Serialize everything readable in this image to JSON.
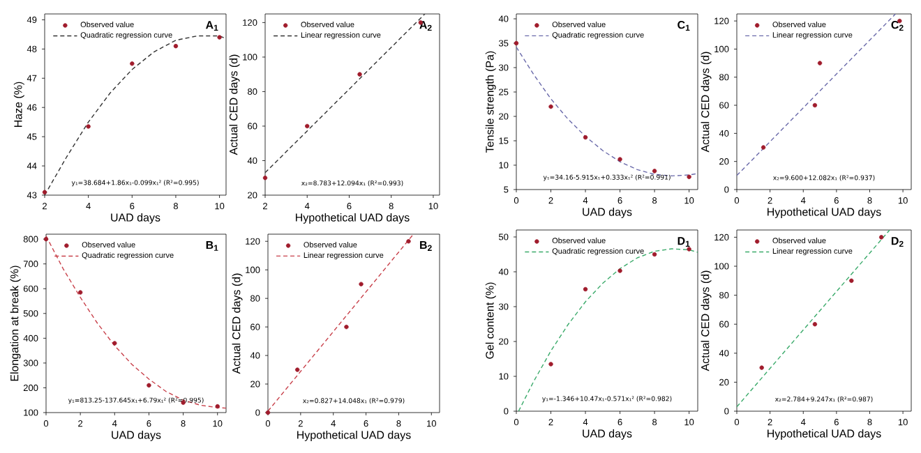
{
  "chart_data": [
    {
      "type": "scatter",
      "xlabel": "UAD days",
      "ylabel": "Haze (%)",
      "annotations": [
        "A$_{1}$",
        "y₁=38.684+1.86x₁-0.099x₁² (R²=0.995)"
      ],
      "xlim": [
        2,
        10.3
      ],
      "ylim": [
        43,
        49.2
      ],
      "xticks": [
        2,
        4,
        6,
        8,
        10
      ],
      "yticks": [
        43,
        44,
        45,
        46,
        47,
        48,
        49
      ],
      "legend": "top left",
      "series": [
        {
          "name": "Observed value",
          "type": "scatter",
          "marker": "circle",
          "color": "#a01c2c",
          "x": [
            2,
            4,
            6,
            8,
            10
          ],
          "values": [
            43.1,
            45.35,
            47.5,
            48.1,
            48.4
          ]
        },
        {
          "name": "Quadratic regression curve",
          "type": "line",
          "line_style": "dashed",
          "color": "#333333",
          "x": [
            2,
            3,
            4,
            5,
            6,
            7,
            8,
            9,
            10,
            10.3
          ],
          "values": [
            43.0,
            44.3,
            45.5,
            46.5,
            47.3,
            47.9,
            48.3,
            48.45,
            48.45,
            48.35
          ]
        }
      ]
    },
    {
      "type": "scatter",
      "xlabel": "Hypothetical UAD days",
      "ylabel": "Actual CED days (d)",
      "annotations": [
        "A$_{2}$",
        "x₂=8.783+12.094x₁ (R²=0.993)"
      ],
      "xlim": [
        2,
        10.3
      ],
      "ylim": [
        20,
        125
      ],
      "xticks": [
        2,
        4,
        6,
        8,
        10
      ],
      "yticks": [
        20,
        40,
        60,
        80,
        100,
        120
      ],
      "legend": "top left",
      "series": [
        {
          "name": "Observed value",
          "type": "scatter",
          "marker": "circle",
          "color": "#a01c2c",
          "x": [
            2,
            4,
            6.5,
            9.4
          ],
          "values": [
            30,
            60,
            90,
            120
          ]
        },
        {
          "name": "Linear regression curve",
          "type": "line",
          "line_style": "dashed",
          "color": "#333333",
          "x": [
            2,
            9.6
          ],
          "values": [
            33,
            125
          ]
        }
      ]
    },
    {
      "type": "scatter",
      "xlabel": "UAD days",
      "ylabel": "Elongation at break (%)",
      "annotations": [
        "B$_{1}$",
        "y₁=813.25-137.645x₁+6.79x₁² (R²=0.995)"
      ],
      "xlim": [
        0,
        10.5
      ],
      "ylim": [
        100,
        820
      ],
      "xticks": [
        0,
        2,
        4,
        6,
        8,
        10
      ],
      "yticks": [
        100,
        200,
        300,
        400,
        500,
        600,
        700,
        800
      ],
      "legend": "top left",
      "series": [
        {
          "name": "Observed value",
          "type": "scatter",
          "marker": "circle",
          "color": "#a01c2c",
          "x": [
            0,
            2,
            4,
            6,
            8,
            10
          ],
          "values": [
            800,
            585,
            380,
            210,
            140,
            125
          ]
        },
        {
          "name": "Quadratic regression curve",
          "type": "line",
          "line_style": "dashed",
          "color": "#c8404a",
          "x": [
            0,
            1,
            2,
            3,
            4,
            5,
            6,
            7,
            8,
            9,
            10,
            10.5
          ],
          "values": [
            813,
            680,
            565,
            460,
            370,
            295,
            235,
            185,
            150,
            130,
            120,
            118
          ]
        }
      ]
    },
    {
      "type": "scatter",
      "xlabel": "Hypothetical UAD days",
      "ylabel": "Actual CED days (d)",
      "annotations": [
        "B$_{2}$",
        "x₂=0.827+14.048x₁ (R²=0.979)"
      ],
      "xlim": [
        0,
        10.5
      ],
      "ylim": [
        0,
        125
      ],
      "xticks": [
        0,
        2,
        4,
        6,
        8,
        10
      ],
      "yticks": [
        0,
        20,
        40,
        60,
        80,
        100,
        120
      ],
      "legend": "top left",
      "series": [
        {
          "name": "Observed value",
          "type": "scatter",
          "marker": "circle",
          "color": "#a01c2c",
          "x": [
            0,
            1.8,
            4.8,
            5.7,
            8.6
          ],
          "values": [
            0,
            30,
            60,
            90,
            120
          ]
        },
        {
          "name": "Linear regression curve",
          "type": "line",
          "line_style": "dashed",
          "color": "#c8404a",
          "x": [
            0,
            8.9
          ],
          "values": [
            1,
            125
          ]
        }
      ]
    },
    {
      "type": "scatter",
      "xlabel": "UAD days",
      "ylabel": "Tensile strength (Pa)",
      "annotations": [
        "C$_{1}$",
        "y₁=34.16-5.915x₁+0.333x₁² (R²=0.991)"
      ],
      "xlim": [
        0,
        10.5
      ],
      "ylim": [
        5,
        41
      ],
      "xticks": [
        0,
        2,
        4,
        6,
        8,
        10
      ],
      "yticks": [
        5,
        10,
        15,
        20,
        25,
        30,
        35,
        40
      ],
      "legend": "top left",
      "series": [
        {
          "name": "Observed value",
          "type": "scatter",
          "marker": "circle",
          "color": "#a01c2c",
          "x": [
            0,
            2,
            4,
            6,
            8,
            10
          ],
          "values": [
            35,
            22,
            15.7,
            11.2,
            8.8,
            7.6
          ]
        },
        {
          "name": "Quadratic regression curve",
          "type": "line",
          "line_style": "dashed",
          "color": "#6a6aaa",
          "x": [
            0,
            1,
            2,
            3,
            4,
            5,
            6,
            7,
            8,
            9,
            10,
            10.5
          ],
          "values": [
            34.2,
            28.6,
            23.6,
            19.4,
            15.9,
            13.0,
            10.7,
            9.1,
            8.1,
            7.8,
            8.0,
            8.3
          ]
        }
      ]
    },
    {
      "type": "scatter",
      "xlabel": "Hypothetical UAD days",
      "ylabel": "Actual CED days (d)",
      "annotations": [
        "C$_{2}$",
        "x₂=9.600+12.082x₁ (R²=0.937)"
      ],
      "xlim": [
        0,
        10.5
      ],
      "ylim": [
        0,
        125
      ],
      "xticks": [
        0,
        2,
        4,
        6,
        8,
        10
      ],
      "yticks": [
        0,
        20,
        40,
        60,
        80,
        100,
        120
      ],
      "legend": "top left",
      "series": [
        {
          "name": "Observed value",
          "type": "scatter",
          "marker": "circle",
          "color": "#a01c2c",
          "x": [
            1.6,
            4.7,
            5,
            9.8
          ],
          "values": [
            30,
            60,
            90,
            120
          ]
        },
        {
          "name": "Linear regression curve",
          "type": "line",
          "line_style": "dashed",
          "color": "#6a6aaa",
          "x": [
            0,
            9.55
          ],
          "values": [
            10,
            125
          ]
        }
      ]
    },
    {
      "type": "scatter",
      "xlabel": "UAD days",
      "ylabel": "Gel content (%)",
      "annotations": [
        "D$_{1}$",
        "y₁=-1.346+10.47x₁-0.571x₁² (R²=0.982)"
      ],
      "xlim": [
        0,
        10.5
      ],
      "ylim": [
        0,
        52
      ],
      "xticks": [
        0,
        2,
        4,
        6,
        8,
        10
      ],
      "yticks": [
        0,
        10,
        20,
        30,
        40,
        50
      ],
      "legend": "top left",
      "series": [
        {
          "name": "Observed value",
          "type": "scatter",
          "marker": "circle",
          "color": "#a01c2c",
          "x": [
            2,
            4,
            6,
            8,
            10
          ],
          "values": [
            13.5,
            35,
            40.3,
            45,
            46.5
          ]
        },
        {
          "name": "Quadratic regression curve",
          "type": "line",
          "line_style": "dashed",
          "color": "#3aaa6a",
          "x": [
            0.13,
            1,
            2,
            3,
            4,
            5,
            6,
            7,
            8,
            9,
            10,
            10.5
          ],
          "values": [
            0,
            8.5,
            17.3,
            24.9,
            31.4,
            36.7,
            40.9,
            44.0,
            45.9,
            46.6,
            46.3,
            45.6
          ]
        }
      ]
    },
    {
      "type": "scatter",
      "xlabel": "Hypothetical UAD days",
      "ylabel": "Actual CED days (d)",
      "annotations": [
        "D$_{2}$",
        "x₂=2.784+9.247x₁ (R²=0.987)"
      ],
      "xlim": [
        0,
        10.5
      ],
      "ylim": [
        0,
        125
      ],
      "xticks": [
        0,
        2,
        4,
        6,
        8,
        10
      ],
      "yticks": [
        0,
        20,
        40,
        60,
        80,
        100,
        120
      ],
      "legend": "top left",
      "series": [
        {
          "name": "Observed value",
          "type": "scatter",
          "marker": "circle",
          "color": "#a01c2c",
          "x": [
            1.5,
            4.7,
            6.9,
            8.7
          ],
          "values": [
            30,
            60,
            90,
            120
          ]
        },
        {
          "name": "Linear regression curve",
          "type": "line",
          "line_style": "dashed",
          "color": "#3aaa6a",
          "x": [
            0,
            9.2
          ],
          "values": [
            3,
            125
          ]
        }
      ]
    }
  ]
}
